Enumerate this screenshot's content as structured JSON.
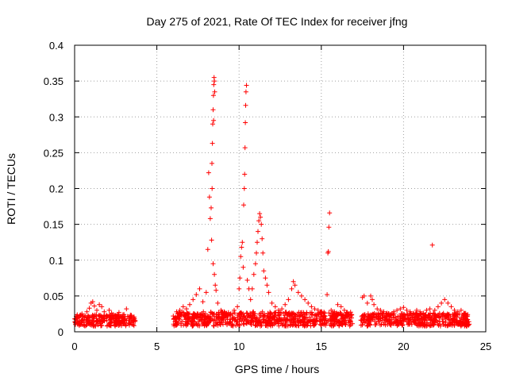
{
  "chart_data": {
    "type": "scatter",
    "title": "Day 275 of 2021, Rate Of TEC Index for receiver jfng",
    "xlabel": "GPS time / hours",
    "ylabel": "ROTI / TECUs",
    "xlim": [
      0,
      25
    ],
    "ylim": [
      0,
      0.4
    ],
    "xticks": [
      0,
      5,
      10,
      15,
      20,
      25
    ],
    "xtick_labels": [
      "0",
      "5",
      "10",
      "15",
      "20",
      "25"
    ],
    "yticks": [
      0,
      0.05,
      0.1,
      0.15,
      0.2,
      0.25,
      0.3,
      0.35,
      0.4
    ],
    "ytick_labels": [
      "0",
      "0.05",
      "0.1",
      "0.15",
      "0.2",
      "0.25",
      "0.3",
      "0.35",
      "0.4"
    ],
    "grid": true,
    "marker": "+",
    "color": "#ff0000",
    "series": [
      {
        "name": "ROTI",
        "points": [
          [
            0.0,
            0.018
          ],
          [
            0.15,
            0.022
          ],
          [
            0.3,
            0.015
          ],
          [
            0.45,
            0.025
          ],
          [
            0.6,
            0.02
          ],
          [
            0.75,
            0.028
          ],
          [
            0.9,
            0.033
          ],
          [
            1.0,
            0.04
          ],
          [
            1.1,
            0.042
          ],
          [
            1.2,
            0.036
          ],
          [
            1.35,
            0.03
          ],
          [
            1.5,
            0.038
          ],
          [
            1.65,
            0.035
          ],
          [
            1.8,
            0.028
          ],
          [
            1.95,
            0.022
          ],
          [
            2.1,
            0.03
          ],
          [
            2.25,
            0.026
          ],
          [
            2.4,
            0.019
          ],
          [
            2.55,
            0.022
          ],
          [
            2.7,
            0.027
          ],
          [
            2.85,
            0.02
          ],
          [
            3.0,
            0.024
          ],
          [
            3.15,
            0.032
          ],
          [
            3.3,
            0.018
          ],
          [
            3.45,
            0.021
          ],
          [
            3.6,
            0.017
          ],
          [
            6.0,
            0.022
          ],
          [
            6.2,
            0.028
          ],
          [
            6.4,
            0.03
          ],
          [
            6.6,
            0.035
          ],
          [
            6.8,
            0.032
          ],
          [
            7.0,
            0.038
          ],
          [
            7.2,
            0.045
          ],
          [
            7.4,
            0.052
          ],
          [
            7.6,
            0.06
          ],
          [
            7.8,
            0.042
          ],
          [
            8.0,
            0.055
          ],
          [
            8.1,
            0.115
          ],
          [
            8.15,
            0.222
          ],
          [
            8.2,
            0.188
          ],
          [
            8.25,
            0.158
          ],
          [
            8.3,
            0.173
          ],
          [
            8.35,
            0.235
          ],
          [
            8.38,
            0.263
          ],
          [
            8.4,
            0.29
          ],
          [
            8.42,
            0.31
          ],
          [
            8.44,
            0.33
          ],
          [
            8.46,
            0.345
          ],
          [
            8.48,
            0.355
          ],
          [
            8.5,
            0.35
          ],
          [
            8.52,
            0.335
          ],
          [
            8.45,
            0.295
          ],
          [
            8.36,
            0.2
          ],
          [
            8.33,
            0.128
          ],
          [
            8.42,
            0.095
          ],
          [
            8.5,
            0.08
          ],
          [
            8.55,
            0.065
          ],
          [
            8.6,
            0.058
          ],
          [
            8.7,
            0.04
          ],
          [
            8.9,
            0.03
          ],
          [
            9.1,
            0.028
          ],
          [
            9.3,
            0.022
          ],
          [
            9.5,
            0.025
          ],
          [
            9.7,
            0.03
          ],
          [
            9.9,
            0.035
          ],
          [
            10.0,
            0.06
          ],
          [
            10.05,
            0.075
          ],
          [
            10.1,
            0.105
          ],
          [
            10.15,
            0.118
          ],
          [
            10.2,
            0.125
          ],
          [
            10.25,
            0.09
          ],
          [
            10.28,
            0.177
          ],
          [
            10.32,
            0.2
          ],
          [
            10.34,
            0.22
          ],
          [
            10.36,
            0.257
          ],
          [
            10.38,
            0.292
          ],
          [
            10.4,
            0.316
          ],
          [
            10.42,
            0.335
          ],
          [
            10.45,
            0.344
          ],
          [
            10.5,
            0.072
          ],
          [
            10.6,
            0.06
          ],
          [
            10.7,
            0.045
          ],
          [
            10.8,
            0.06
          ],
          [
            10.9,
            0.08
          ],
          [
            11.0,
            0.095
          ],
          [
            11.05,
            0.11
          ],
          [
            11.1,
            0.125
          ],
          [
            11.15,
            0.14
          ],
          [
            11.2,
            0.155
          ],
          [
            11.25,
            0.165
          ],
          [
            11.3,
            0.16
          ],
          [
            11.35,
            0.15
          ],
          [
            11.4,
            0.13
          ],
          [
            11.45,
            0.11
          ],
          [
            11.5,
            0.085
          ],
          [
            11.6,
            0.075
          ],
          [
            11.7,
            0.065
          ],
          [
            11.8,
            0.055
          ],
          [
            12.0,
            0.04
          ],
          [
            12.2,
            0.035
          ],
          [
            12.4,
            0.03
          ],
          [
            12.6,
            0.032
          ],
          [
            12.8,
            0.038
          ],
          [
            13.0,
            0.045
          ],
          [
            13.2,
            0.06
          ],
          [
            13.3,
            0.07
          ],
          [
            13.4,
            0.065
          ],
          [
            13.6,
            0.055
          ],
          [
            13.8,
            0.05
          ],
          [
            14.0,
            0.045
          ],
          [
            14.2,
            0.04
          ],
          [
            14.4,
            0.035
          ],
          [
            14.6,
            0.032
          ],
          [
            14.8,
            0.03
          ],
          [
            15.0,
            0.028
          ],
          [
            15.2,
            0.026
          ],
          [
            15.35,
            0.052
          ],
          [
            15.4,
            0.11
          ],
          [
            15.43,
            0.112
          ],
          [
            15.46,
            0.146
          ],
          [
            15.5,
            0.166
          ],
          [
            15.6,
            0.03
          ],
          [
            15.8,
            0.028
          ],
          [
            16.0,
            0.038
          ],
          [
            16.2,
            0.035
          ],
          [
            16.4,
            0.03
          ],
          [
            16.6,
            0.025
          ],
          [
            16.8,
            0.022
          ],
          [
            17.5,
            0.048
          ],
          [
            17.6,
            0.05
          ],
          [
            17.8,
            0.04
          ],
          [
            18.0,
            0.05
          ],
          [
            18.1,
            0.045
          ],
          [
            18.2,
            0.038
          ],
          [
            18.4,
            0.032
          ],
          [
            18.6,
            0.03
          ],
          [
            18.8,
            0.028
          ],
          [
            19.0,
            0.026
          ],
          [
            19.2,
            0.024
          ],
          [
            19.4,
            0.028
          ],
          [
            19.6,
            0.03
          ],
          [
            19.8,
            0.032
          ],
          [
            20.0,
            0.034
          ],
          [
            20.2,
            0.03
          ],
          [
            20.4,
            0.028
          ],
          [
            20.6,
            0.026
          ],
          [
            20.8,
            0.03
          ],
          [
            21.0,
            0.028
          ],
          [
            21.2,
            0.026
          ],
          [
            21.4,
            0.03
          ],
          [
            21.6,
            0.032
          ],
          [
            21.75,
            0.121
          ],
          [
            21.9,
            0.03
          ],
          [
            22.1,
            0.035
          ],
          [
            22.3,
            0.04
          ],
          [
            22.5,
            0.045
          ],
          [
            22.7,
            0.04
          ],
          [
            22.9,
            0.035
          ],
          [
            23.1,
            0.03
          ],
          [
            23.3,
            0.028
          ],
          [
            23.5,
            0.03
          ],
          [
            23.7,
            0.026
          ],
          [
            23.9,
            0.024
          ]
        ],
        "bands": [
          {
            "x": [
              0.0,
              3.7
            ],
            "y": [
              0.008,
              0.024
            ]
          },
          {
            "x": [
              6.0,
              16.9
            ],
            "y": [
              0.008,
              0.028
            ]
          },
          {
            "x": [
              17.4,
              24.0
            ],
            "y": [
              0.008,
              0.026
            ]
          }
        ]
      }
    ]
  }
}
